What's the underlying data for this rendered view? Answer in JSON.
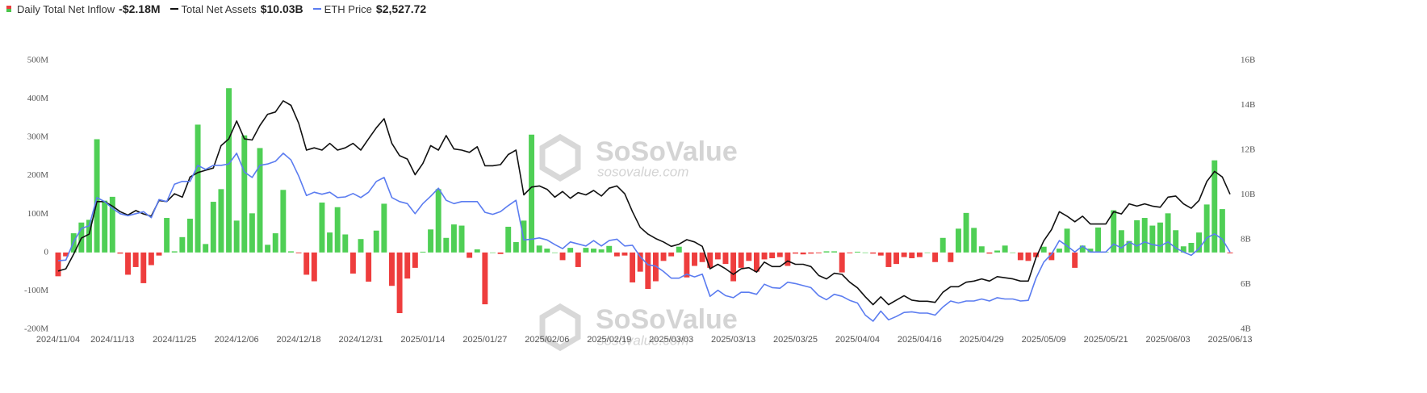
{
  "chart_data": {
    "type": "combo",
    "watermark": {
      "name": "SoSoValue",
      "url": "sosovalue.com"
    },
    "categories": [
      "2024/11/04",
      null,
      null,
      null,
      null,
      null,
      null,
      "2024/11/13",
      null,
      null,
      null,
      null,
      null,
      null,
      null,
      "2024/11/25",
      null,
      null,
      null,
      null,
      null,
      null,
      null,
      "2024/12/06",
      null,
      null,
      null,
      null,
      null,
      null,
      null,
      "2024/12/18",
      null,
      null,
      null,
      null,
      null,
      null,
      null,
      "2024/12/31",
      null,
      null,
      null,
      null,
      null,
      null,
      null,
      "2025/01/14",
      null,
      null,
      null,
      null,
      null,
      null,
      null,
      "2025/01/27",
      null,
      null,
      null,
      null,
      null,
      null,
      null,
      "2025/02/06",
      null,
      null,
      null,
      null,
      null,
      null,
      null,
      "2025/02/19",
      null,
      null,
      null,
      null,
      null,
      null,
      null,
      "2025/03/03",
      null,
      null,
      null,
      null,
      null,
      null,
      null,
      "2025/03/13",
      null,
      null,
      null,
      null,
      null,
      null,
      null,
      "2025/03/25",
      null,
      null,
      null,
      null,
      null,
      null,
      null,
      "2025/04/04",
      null,
      null,
      null,
      null,
      null,
      null,
      null,
      "2025/04/16",
      null,
      null,
      null,
      null,
      null,
      null,
      null,
      "2025/04/29",
      null,
      null,
      null,
      null,
      null,
      null,
      null,
      "2025/05/09",
      null,
      null,
      null,
      null,
      null,
      null,
      null,
      "2025/05/21",
      null,
      null,
      null,
      null,
      null,
      null,
      null,
      "2025/06/03",
      null,
      null,
      null,
      null,
      null,
      null,
      null,
      "2025/06/13"
    ],
    "series": [
      {
        "name": "Daily Total Net Inflow",
        "latest": "-$2.18M",
        "type": "bar",
        "axis": "y",
        "color": "#4fcf55",
        "negative_color": "#ee3d3d",
        "values": [
          -62,
          -10,
          50,
          78,
          85,
          295,
          135,
          145,
          -3,
          -58,
          -38,
          -80,
          -33,
          -8,
          90,
          3,
          40,
          88,
          333,
          22,
          132,
          165,
          428,
          83,
          305,
          102,
          272,
          20,
          50,
          163,
          3,
          -2,
          -58,
          -75,
          130,
          52,
          118,
          47,
          -55,
          35,
          -76,
          57,
          127,
          -87,
          -158,
          -68,
          -40,
          2,
          60,
          165,
          38,
          73,
          70,
          -14,
          8,
          -135,
          0,
          -4,
          67,
          27,
          83,
          307,
          18,
          10,
          0,
          -20,
          12,
          -38,
          12,
          10,
          8,
          17,
          -10,
          -8,
          -78,
          -50,
          -95,
          -75,
          -22,
          -10,
          15,
          -65,
          -35,
          -25,
          -40,
          -18,
          -30,
          -75,
          -40,
          -22,
          -50,
          -18,
          -15,
          -12,
          -35,
          -3,
          -5,
          -3,
          -2,
          3,
          3,
          -52,
          -2,
          2,
          0,
          -3,
          -8,
          -38,
          -30,
          -12,
          -15,
          -12,
          0,
          -25,
          38,
          -25,
          62,
          103,
          64,
          16,
          -3,
          5,
          18,
          0,
          -20,
          -22,
          -12,
          15,
          -20,
          10,
          62,
          -40,
          18,
          10,
          65,
          1,
          110,
          58,
          30,
          84,
          90,
          70,
          78,
          102,
          58,
          16,
          25,
          52,
          125,
          240,
          113,
          -2.18
        ]
      },
      {
        "name": "Total Net Assets",
        "latest": "$10.03B",
        "type": "line",
        "axis": "y2",
        "color": "#111111",
        "values": [
          6.6,
          6.7,
          7.35,
          8.07,
          8.25,
          9.7,
          9.7,
          9.5,
          9.25,
          9.1,
          9.3,
          9.15,
          9.05,
          9.75,
          9.7,
          10.05,
          9.9,
          10.8,
          11.0,
          11.1,
          11.2,
          12.2,
          12.5,
          13.3,
          12.5,
          12.45,
          13.1,
          13.6,
          13.7,
          14.2,
          14.0,
          13.2,
          12.0,
          12.1,
          12.0,
          12.3,
          12.0,
          12.1,
          12.3,
          12.0,
          12.5,
          13.0,
          13.4,
          12.3,
          11.75,
          11.6,
          10.9,
          11.4,
          12.2,
          12.0,
          12.65,
          12.05,
          12.0,
          11.9,
          12.15,
          11.3,
          11.3,
          11.35,
          11.8,
          12.0,
          10.0,
          10.35,
          10.4,
          10.25,
          9.9,
          10.15,
          9.85,
          10.1,
          10.0,
          10.2,
          9.95,
          10.3,
          10.4,
          10.05,
          9.25,
          8.55,
          8.25,
          8.05,
          7.9,
          7.7,
          7.8,
          8.0,
          7.9,
          7.7,
          6.7,
          6.9,
          6.7,
          6.45,
          6.7,
          6.75,
          6.55,
          7.0,
          6.8,
          6.8,
          7.05,
          6.9,
          6.9,
          6.8,
          6.4,
          6.25,
          6.5,
          6.45,
          6.1,
          5.85,
          5.45,
          5.1,
          5.45,
          5.1,
          5.3,
          5.5,
          5.3,
          5.25,
          5.25,
          5.2,
          5.65,
          5.9,
          5.9,
          6.1,
          6.15,
          6.25,
          6.15,
          6.35,
          6.3,
          6.25,
          6.15,
          6.15,
          7.2,
          7.95,
          8.45,
          9.25,
          9.05,
          8.8,
          9.05,
          8.7,
          8.7,
          8.7,
          9.25,
          9.15,
          9.6,
          9.5,
          9.6,
          9.5,
          9.45,
          9.9,
          9.95,
          9.6,
          9.4,
          9.75,
          10.6,
          11.05,
          10.8,
          10.03
        ]
      },
      {
        "name": "ETH Price",
        "latest": "$2,527.72",
        "type": "line",
        "axis": "y3",
        "color": "#5b7cf0",
        "values": [
          2400,
          2410,
          2680,
          2880,
          2920,
          3340,
          3280,
          3180,
          3100,
          3070,
          3100,
          3130,
          3040,
          3310,
          3280,
          3540,
          3580,
          3580,
          3820,
          3760,
          3820,
          3820,
          3840,
          4000,
          3720,
          3640,
          3820,
          3840,
          3880,
          4000,
          3900,
          3660,
          3370,
          3420,
          3390,
          3420,
          3340,
          3350,
          3400,
          3340,
          3420,
          3580,
          3640,
          3340,
          3280,
          3250,
          3100,
          3250,
          3360,
          3480,
          3300,
          3250,
          3280,
          3280,
          3280,
          3120,
          3090,
          3130,
          3220,
          3300,
          2710,
          2720,
          2740,
          2710,
          2640,
          2580,
          2680,
          2650,
          2620,
          2700,
          2620,
          2700,
          2720,
          2620,
          2630,
          2460,
          2340,
          2320,
          2240,
          2140,
          2140,
          2200,
          2160,
          2200,
          1870,
          1960,
          1880,
          1850,
          1930,
          1930,
          1900,
          2050,
          2000,
          1990,
          2080,
          2060,
          2030,
          2000,
          1880,
          1820,
          1900,
          1870,
          1810,
          1770,
          1590,
          1500,
          1650,
          1520,
          1570,
          1630,
          1640,
          1620,
          1620,
          1590,
          1710,
          1800,
          1770,
          1800,
          1800,
          1830,
          1800,
          1850,
          1830,
          1830,
          1800,
          1810,
          2140,
          2380,
          2500,
          2700,
          2620,
          2530,
          2620,
          2530,
          2530,
          2530,
          2650,
          2590,
          2680,
          2620,
          2680,
          2640,
          2620,
          2680,
          2590,
          2530,
          2480,
          2580,
          2740,
          2800,
          2720,
          2527.72
        ]
      }
    ],
    "ylim": [
      -200,
      500
    ],
    "yticks": [
      {
        "value": 500,
        "label": "500M"
      },
      {
        "value": 400,
        "label": "400M"
      },
      {
        "value": 300,
        "label": "300M"
      },
      {
        "value": 200,
        "label": "200M"
      },
      {
        "value": 100,
        "label": "100M"
      },
      0,
      {
        "value": -100,
        "label": "-100M"
      },
      {
        "value": -200,
        "label": "-200M"
      }
    ],
    "y2lim": [
      4,
      16
    ],
    "y2ticks": [
      {
        "value": 16,
        "label": "16B"
      },
      {
        "value": 14,
        "label": "14B"
      },
      {
        "value": 12,
        "label": "12B"
      },
      {
        "value": 10,
        "label": "10B"
      },
      {
        "value": 8,
        "label": "8B"
      },
      {
        "value": 6,
        "label": "6B"
      },
      {
        "value": 4,
        "label": "4B"
      }
    ],
    "y3lim": [
      1380,
      5380
    ],
    "grid": false
  }
}
